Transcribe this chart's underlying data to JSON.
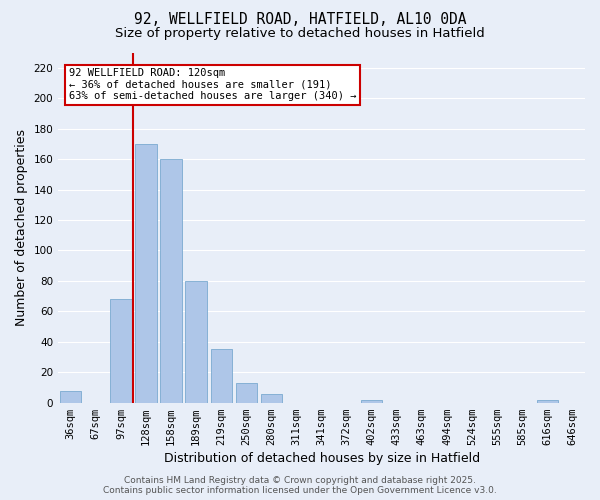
{
  "title1": "92, WELLFIELD ROAD, HATFIELD, AL10 0DA",
  "title2": "Size of property relative to detached houses in Hatfield",
  "xlabel": "Distribution of detached houses by size in Hatfield",
  "ylabel": "Number of detached properties",
  "categories": [
    "36sqm",
    "67sqm",
    "97sqm",
    "128sqm",
    "158sqm",
    "189sqm",
    "219sqm",
    "250sqm",
    "280sqm",
    "311sqm",
    "341sqm",
    "372sqm",
    "402sqm",
    "433sqm",
    "463sqm",
    "494sqm",
    "524sqm",
    "555sqm",
    "585sqm",
    "616sqm",
    "646sqm"
  ],
  "values": [
    8,
    0,
    68,
    170,
    160,
    80,
    35,
    13,
    6,
    0,
    0,
    0,
    2,
    0,
    0,
    0,
    0,
    0,
    0,
    2,
    0
  ],
  "bar_color": "#aec6e8",
  "bar_edge_color": "#7aaad0",
  "bg_color": "#e8eef8",
  "grid_color": "#ffffff",
  "vline_x_index": 3,
  "vline_color": "#cc0000",
  "annotation_line1": "92 WELLFIELD ROAD: 120sqm",
  "annotation_line2": "← 36% of detached houses are smaller (191)",
  "annotation_line3": "63% of semi-detached houses are larger (340) →",
  "annotation_box_color": "#cc0000",
  "annotation_bg": "#ffffff",
  "ylim": [
    0,
    230
  ],
  "yticks": [
    0,
    20,
    40,
    60,
    80,
    100,
    120,
    140,
    160,
    180,
    200,
    220
  ],
  "footer": "Contains HM Land Registry data © Crown copyright and database right 2025.\nContains public sector information licensed under the Open Government Licence v3.0.",
  "title_fontsize": 10.5,
  "subtitle_fontsize": 9.5,
  "axis_label_fontsize": 9,
  "tick_fontsize": 7.5,
  "footer_fontsize": 6.5
}
